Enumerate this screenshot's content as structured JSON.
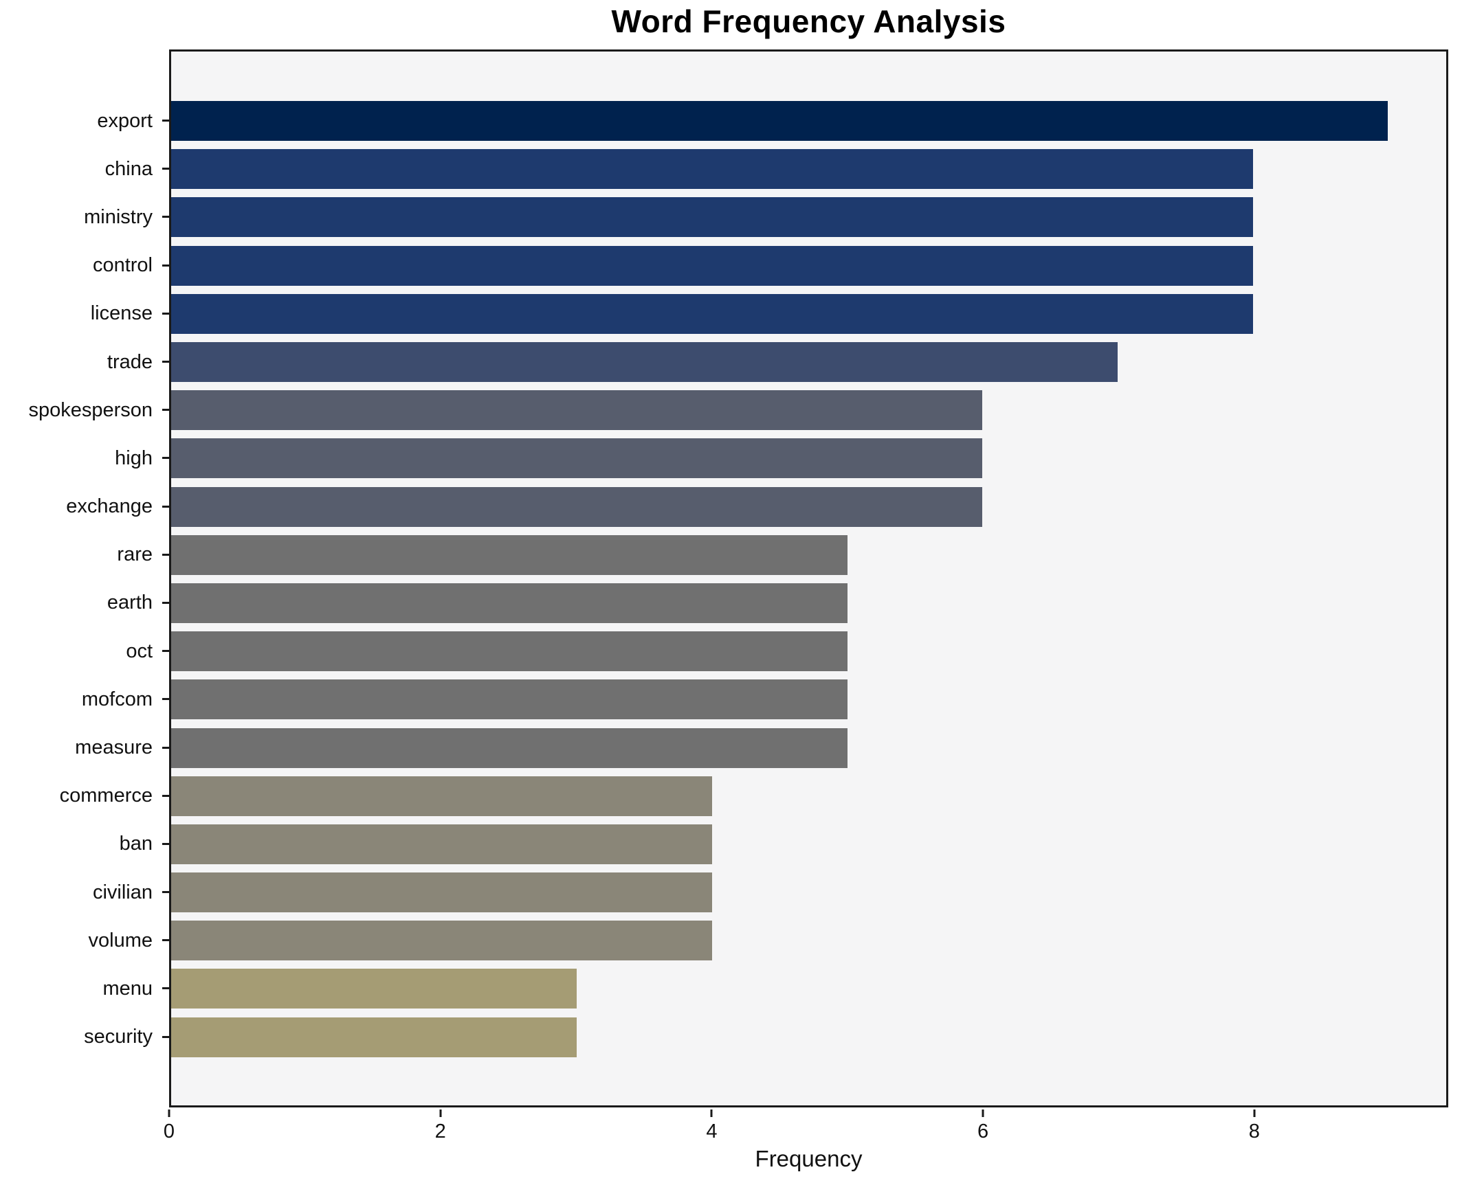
{
  "chart_data": {
    "type": "bar",
    "orientation": "horizontal",
    "title": "Word Frequency Analysis",
    "xlabel": "Frequency",
    "ylabel": "",
    "categories": [
      "export",
      "china",
      "ministry",
      "control",
      "license",
      "trade",
      "spokesperson",
      "high",
      "exchange",
      "rare",
      "earth",
      "oct",
      "mofcom",
      "measure",
      "commerce",
      "ban",
      "civilian",
      "volume",
      "menu",
      "security"
    ],
    "values": [
      9,
      8,
      8,
      8,
      8,
      7,
      6,
      6,
      6,
      5,
      5,
      5,
      5,
      5,
      4,
      4,
      4,
      4,
      3,
      3
    ],
    "bar_colors": [
      "#00224e",
      "#1e3a6e",
      "#1e3a6e",
      "#1e3a6e",
      "#1e3a6e",
      "#3d4c6e",
      "#575d6d",
      "#575d6d",
      "#575d6d",
      "#707070",
      "#707070",
      "#707070",
      "#707070",
      "#707070",
      "#8a8678",
      "#8a8678",
      "#8a8678",
      "#8a8678",
      "#a59c74",
      "#a59c74"
    ],
    "xlim": [
      0,
      9.43
    ],
    "x_ticks": [
      0,
      2,
      4,
      6,
      8
    ],
    "grid": false,
    "legend_position": "none",
    "plot_background": "#f5f5f6",
    "figure_background": "#ffffff",
    "spine_color": "#1a1a1a"
  }
}
